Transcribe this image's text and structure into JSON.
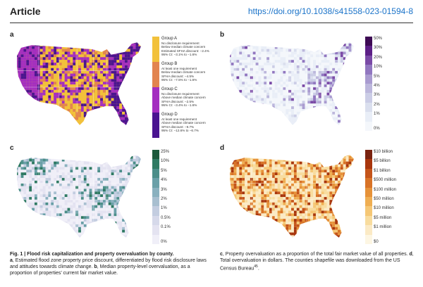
{
  "header": {
    "title": "Article",
    "doi": "https://doi.org/10.1038/s41558-023-01594-8"
  },
  "panels": {
    "a": {
      "label": "a",
      "groups": [
        {
          "name": "Group A",
          "color": "#f2c13b",
          "lines": [
            "No disclosure requirement",
            "Below median climate concern",
            "Estimated SFHA discount: −2.4%",
            "95% CI: −3.1% to −1.6%"
          ]
        },
        {
          "name": "Group B",
          "color": "#e2844f",
          "lines": [
            "At least one requirement",
            "Below median climate concern",
            "SFHA discount: −4.5%",
            "95% CI: −7.5% to −1.6%"
          ]
        },
        {
          "name": "Group C",
          "color": "#a42ec0",
          "lines": [
            "No disclosure requirement",
            "Above median climate concern",
            "SFHA discount: −2.5%",
            "95% CI: −3.4% to −1.6%"
          ]
        },
        {
          "name": "Group D",
          "color": "#4a1490",
          "lines": [
            "At least one requirement",
            "Above median climate concern",
            "SFHA discount: −9.7%",
            "95% CI: −12.6% to −6.7%"
          ]
        }
      ]
    },
    "b": {
      "label": "b",
      "ticks": [
        "50%",
        "30%",
        "20%",
        "10%",
        "5%",
        "4%",
        "3%",
        "2%",
        "1%",
        "0%"
      ],
      "colors": [
        "#3d0b54",
        "#5c1f86",
        "#7a4aa6",
        "#9177c0",
        "#a99bd0",
        "#bcb7dc",
        "#cbcde6",
        "#dadfee",
        "#e9eef7",
        "#f4f7fb"
      ]
    },
    "c": {
      "label": "c",
      "ticks": [
        "25%",
        "10%",
        "5%",
        "4%",
        "3%",
        "2%",
        "1%",
        "0.5%",
        "0.1%",
        "0%"
      ],
      "colors": [
        "#1d5a3c",
        "#2f7a63",
        "#4b8e89",
        "#6aa0a8",
        "#8ab1bf",
        "#a8bfd0",
        "#c3cde0",
        "#d6d9ea",
        "#e4e3f1",
        "#f0eff8"
      ]
    },
    "d": {
      "label": "d",
      "ticks": [
        "$10 billion",
        "$5 billion",
        "$1 billion",
        "$500 million",
        "$100 million",
        "$50 million",
        "$10 million",
        "$5 million",
        "$1 million",
        "$0"
      ],
      "colors": [
        "#7a2310",
        "#a8360d",
        "#c4541a",
        "#d87327",
        "#e69239",
        "#efae52",
        "#f5c775",
        "#f8dc9e",
        "#fbeac5",
        "#fdf6e3"
      ]
    }
  },
  "caption": {
    "left_bold": "Fig. 1 | Flood risk capitalization and property overvaluation by county.",
    "left_a": "a",
    "left_a_text": ", Estimated flood zone property price discount, differentiated by flood risk disclosure laws and attitudes towards climate change.",
    "left_b": "b",
    "left_b_text": ", Median property-level overvaluation, as a proportion of properties’ current fair market value.",
    "right_c": "c",
    "right_c_text": ", Property overvaluation as a proportion of the total fair market value of all properties.",
    "right_d": "d",
    "right_d_text": ", Total overvaluation in dollars. The counties shapefile was downloaded from the US Census Bureau",
    "right_ref": "45",
    "right_end": "."
  }
}
